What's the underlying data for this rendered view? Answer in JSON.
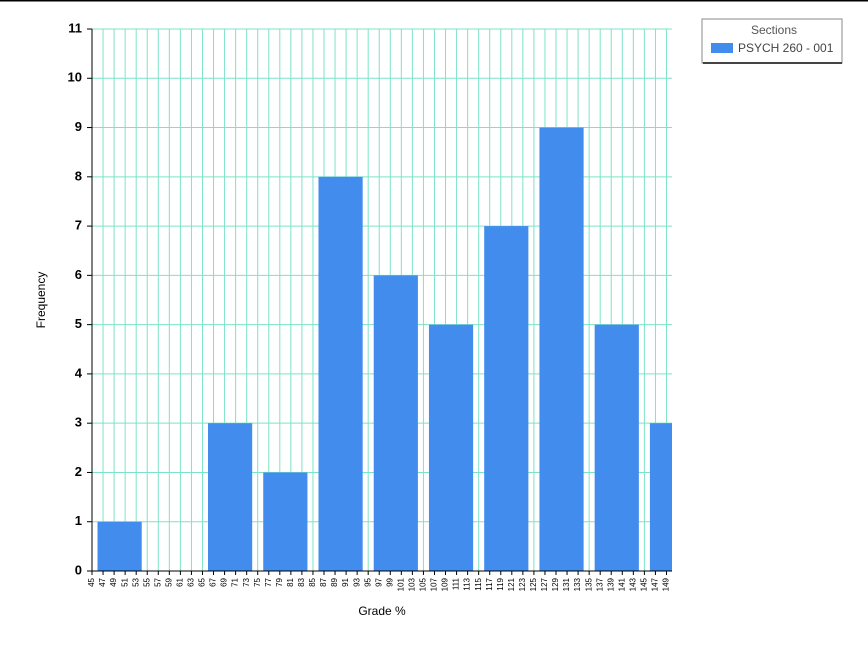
{
  "chart_data": {
    "type": "bar",
    "x_label": "Grade %",
    "y_label": "Frequency",
    "x": [
      50,
      60,
      70,
      80,
      90,
      100,
      110,
      120,
      130,
      140,
      150
    ],
    "series": [
      {
        "name": "PSYCH 260 - 001",
        "color": "#418ced",
        "values": [
          1,
          0,
          3,
          2,
          8,
          6,
          5,
          7,
          9,
          5,
          3
        ]
      }
    ],
    "legend_title": "Sections",
    "legend": "top-right",
    "xlim": [
      45,
      150
    ],
    "ylim": [
      0,
      11
    ],
    "xticks": [
      45,
      47,
      49,
      51,
      53,
      55,
      57,
      59,
      61,
      63,
      65,
      67,
      69,
      71,
      73,
      75,
      77,
      79,
      81,
      83,
      85,
      87,
      89,
      91,
      93,
      95,
      97,
      99,
      101,
      103,
      105,
      107,
      109,
      111,
      113,
      115,
      117,
      119,
      121,
      123,
      125,
      127,
      129,
      131,
      133,
      135,
      137,
      139,
      141,
      143,
      145,
      147,
      149
    ],
    "yticks": [
      0,
      1,
      2,
      3,
      4,
      5,
      6,
      7,
      8,
      9,
      10,
      11
    ],
    "grid": true
  }
}
